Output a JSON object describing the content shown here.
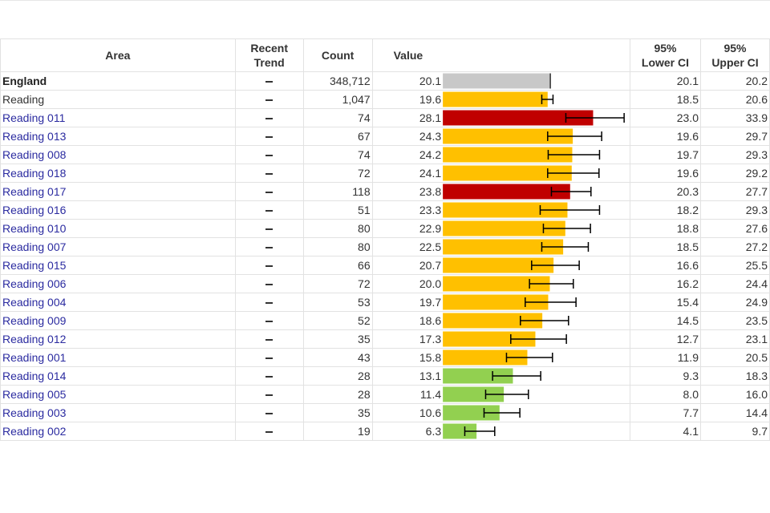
{
  "table": {
    "headers": {
      "area": "Area",
      "trend_line1": "Recent",
      "trend_line2": "Trend",
      "count": "Count",
      "value": "Value",
      "lower_line1": "95%",
      "lower_line2": "Lower CI",
      "upper_line1": "95%",
      "upper_line2": "Upper CI"
    }
  },
  "colors": {
    "benchmark": "#c8c8c8",
    "similar": "#ffc000",
    "worse": "#c00000",
    "better": "#92d050",
    "errorbar": "#000000"
  },
  "chart_data": {
    "type": "bar",
    "orientation": "horizontal",
    "xlim": [
      0,
      35
    ],
    "series": [
      {
        "area": "England",
        "trend": "–",
        "count": "348,712",
        "value": 20.1,
        "value_label": "20.1",
        "lower": 20.1,
        "lower_label": "20.1",
        "upper": 20.2,
        "upper_label": "20.2",
        "category": "benchmark",
        "style": "bold",
        "error_bar": false
      },
      {
        "area": "Reading",
        "trend": "–",
        "count": "1,047",
        "value": 19.6,
        "value_label": "19.6",
        "lower": 18.5,
        "lower_label": "18.5",
        "upper": 20.6,
        "upper_label": "20.6",
        "category": "similar",
        "style": "plain",
        "error_bar": true
      },
      {
        "area": "Reading 011",
        "trend": "–",
        "count": "74",
        "value": 28.1,
        "value_label": "28.1",
        "lower": 23.0,
        "lower_label": "23.0",
        "upper": 33.9,
        "upper_label": "33.9",
        "category": "worse",
        "style": "link",
        "error_bar": true
      },
      {
        "area": "Reading 013",
        "trend": "–",
        "count": "67",
        "value": 24.3,
        "value_label": "24.3",
        "lower": 19.6,
        "lower_label": "19.6",
        "upper": 29.7,
        "upper_label": "29.7",
        "category": "similar",
        "style": "link",
        "error_bar": true
      },
      {
        "area": "Reading 008",
        "trend": "–",
        "count": "74",
        "value": 24.2,
        "value_label": "24.2",
        "lower": 19.7,
        "lower_label": "19.7",
        "upper": 29.3,
        "upper_label": "29.3",
        "category": "similar",
        "style": "link",
        "error_bar": true
      },
      {
        "area": "Reading 018",
        "trend": "–",
        "count": "72",
        "value": 24.1,
        "value_label": "24.1",
        "lower": 19.6,
        "lower_label": "19.6",
        "upper": 29.2,
        "upper_label": "29.2",
        "category": "similar",
        "style": "link",
        "error_bar": true
      },
      {
        "area": "Reading 017",
        "trend": "–",
        "count": "118",
        "value": 23.8,
        "value_label": "23.8",
        "lower": 20.3,
        "lower_label": "20.3",
        "upper": 27.7,
        "upper_label": "27.7",
        "category": "worse",
        "style": "link",
        "error_bar": true
      },
      {
        "area": "Reading 016",
        "trend": "–",
        "count": "51",
        "value": 23.3,
        "value_label": "23.3",
        "lower": 18.2,
        "lower_label": "18.2",
        "upper": 29.3,
        "upper_label": "29.3",
        "category": "similar",
        "style": "link",
        "error_bar": true
      },
      {
        "area": "Reading 010",
        "trend": "–",
        "count": "80",
        "value": 22.9,
        "value_label": "22.9",
        "lower": 18.8,
        "lower_label": "18.8",
        "upper": 27.6,
        "upper_label": "27.6",
        "category": "similar",
        "style": "link",
        "error_bar": true
      },
      {
        "area": "Reading 007",
        "trend": "–",
        "count": "80",
        "value": 22.5,
        "value_label": "22.5",
        "lower": 18.5,
        "lower_label": "18.5",
        "upper": 27.2,
        "upper_label": "27.2",
        "category": "similar",
        "style": "link",
        "error_bar": true
      },
      {
        "area": "Reading 015",
        "trend": "–",
        "count": "66",
        "value": 20.7,
        "value_label": "20.7",
        "lower": 16.6,
        "lower_label": "16.6",
        "upper": 25.5,
        "upper_label": "25.5",
        "category": "similar",
        "style": "link",
        "error_bar": true
      },
      {
        "area": "Reading 006",
        "trend": "–",
        "count": "72",
        "value": 20.0,
        "value_label": "20.0",
        "lower": 16.2,
        "lower_label": "16.2",
        "upper": 24.4,
        "upper_label": "24.4",
        "category": "similar",
        "style": "link",
        "error_bar": true
      },
      {
        "area": "Reading 004",
        "trend": "–",
        "count": "53",
        "value": 19.7,
        "value_label": "19.7",
        "lower": 15.4,
        "lower_label": "15.4",
        "upper": 24.9,
        "upper_label": "24.9",
        "category": "similar",
        "style": "link",
        "error_bar": true
      },
      {
        "area": "Reading 009",
        "trend": "–",
        "count": "52",
        "value": 18.6,
        "value_label": "18.6",
        "lower": 14.5,
        "lower_label": "14.5",
        "upper": 23.5,
        "upper_label": "23.5",
        "category": "similar",
        "style": "link",
        "error_bar": true
      },
      {
        "area": "Reading 012",
        "trend": "–",
        "count": "35",
        "value": 17.3,
        "value_label": "17.3",
        "lower": 12.7,
        "lower_label": "12.7",
        "upper": 23.1,
        "upper_label": "23.1",
        "category": "similar",
        "style": "link",
        "error_bar": true
      },
      {
        "area": "Reading 001",
        "trend": "–",
        "count": "43",
        "value": 15.8,
        "value_label": "15.8",
        "lower": 11.9,
        "lower_label": "11.9",
        "upper": 20.5,
        "upper_label": "20.5",
        "category": "similar",
        "style": "link",
        "error_bar": true
      },
      {
        "area": "Reading 014",
        "trend": "–",
        "count": "28",
        "value": 13.1,
        "value_label": "13.1",
        "lower": 9.3,
        "lower_label": "9.3",
        "upper": 18.3,
        "upper_label": "18.3",
        "category": "better",
        "style": "link",
        "error_bar": true
      },
      {
        "area": "Reading 005",
        "trend": "–",
        "count": "28",
        "value": 11.4,
        "value_label": "11.4",
        "lower": 8.0,
        "lower_label": "8.0",
        "upper": 16.0,
        "upper_label": "16.0",
        "category": "better",
        "style": "link",
        "error_bar": true
      },
      {
        "area": "Reading 003",
        "trend": "–",
        "count": "35",
        "value": 10.6,
        "value_label": "10.6",
        "lower": 7.7,
        "lower_label": "7.7",
        "upper": 14.4,
        "upper_label": "14.4",
        "category": "better",
        "style": "link",
        "error_bar": true
      },
      {
        "area": "Reading 002",
        "trend": "–",
        "count": "19",
        "value": 6.3,
        "value_label": "6.3",
        "lower": 4.1,
        "lower_label": "4.1",
        "upper": 9.7,
        "upper_label": "9.7",
        "category": "better",
        "style": "link",
        "error_bar": true
      }
    ]
  }
}
